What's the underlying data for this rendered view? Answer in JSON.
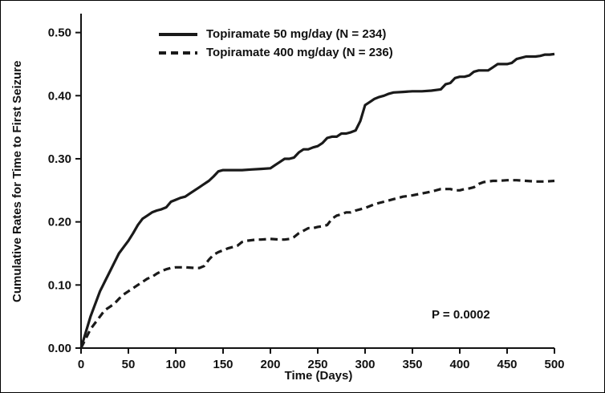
{
  "figure": {
    "p_value": "P = 0.0002"
  },
  "chart_data": {
    "type": "line",
    "title": "",
    "xlabel": "Time (Days)",
    "ylabel": "Cumulative Rates for Time to First Seizure",
    "xlim": [
      0,
      500
    ],
    "ylim": [
      0,
      0.53
    ],
    "grid": false,
    "legend_position": "top-inside",
    "axis_color": "#111111",
    "xticks": [
      0,
      50,
      100,
      150,
      200,
      250,
      300,
      350,
      400,
      450,
      500
    ],
    "xticklabels": [
      "0",
      "50",
      "100",
      "150",
      "200",
      "250",
      "300",
      "350",
      "400",
      "450",
      "500"
    ],
    "yticks": [
      0.0,
      0.1,
      0.2,
      0.3,
      0.4,
      0.5
    ],
    "yticklabels": [
      "0.00",
      "0.10",
      "0.20",
      "0.30",
      "0.40",
      "0.50"
    ],
    "annotation": {
      "text": "P = 0.0002"
    },
    "series": [
      {
        "name": "Topiramate 50 mg/day (N = 234)",
        "style": "solid",
        "color": "#1a1a1a",
        "points": [
          [
            0,
            0.0
          ],
          [
            5,
            0.025
          ],
          [
            10,
            0.05
          ],
          [
            15,
            0.07
          ],
          [
            20,
            0.09
          ],
          [
            25,
            0.105
          ],
          [
            30,
            0.12
          ],
          [
            35,
            0.135
          ],
          [
            40,
            0.15
          ],
          [
            45,
            0.16
          ],
          [
            50,
            0.17
          ],
          [
            55,
            0.182
          ],
          [
            60,
            0.195
          ],
          [
            65,
            0.205
          ],
          [
            70,
            0.21
          ],
          [
            75,
            0.215
          ],
          [
            80,
            0.218
          ],
          [
            85,
            0.22
          ],
          [
            90,
            0.223
          ],
          [
            95,
            0.232
          ],
          [
            100,
            0.235
          ],
          [
            105,
            0.238
          ],
          [
            110,
            0.24
          ],
          [
            115,
            0.245
          ],
          [
            120,
            0.25
          ],
          [
            125,
            0.255
          ],
          [
            130,
            0.26
          ],
          [
            135,
            0.265
          ],
          [
            140,
            0.272
          ],
          [
            145,
            0.28
          ],
          [
            150,
            0.282
          ],
          [
            160,
            0.282
          ],
          [
            170,
            0.282
          ],
          [
            180,
            0.283
          ],
          [
            190,
            0.284
          ],
          [
            200,
            0.285
          ],
          [
            205,
            0.29
          ],
          [
            210,
            0.295
          ],
          [
            215,
            0.3
          ],
          [
            220,
            0.3
          ],
          [
            225,
            0.302
          ],
          [
            230,
            0.31
          ],
          [
            235,
            0.315
          ],
          [
            240,
            0.315
          ],
          [
            245,
            0.318
          ],
          [
            250,
            0.32
          ],
          [
            255,
            0.325
          ],
          [
            260,
            0.333
          ],
          [
            265,
            0.335
          ],
          [
            270,
            0.335
          ],
          [
            275,
            0.34
          ],
          [
            280,
            0.34
          ],
          [
            285,
            0.342
          ],
          [
            290,
            0.345
          ],
          [
            295,
            0.36
          ],
          [
            300,
            0.385
          ],
          [
            305,
            0.39
          ],
          [
            310,
            0.395
          ],
          [
            315,
            0.398
          ],
          [
            320,
            0.4
          ],
          [
            325,
            0.403
          ],
          [
            330,
            0.405
          ],
          [
            340,
            0.406
          ],
          [
            350,
            0.407
          ],
          [
            360,
            0.407
          ],
          [
            370,
            0.408
          ],
          [
            380,
            0.41
          ],
          [
            385,
            0.418
          ],
          [
            390,
            0.42
          ],
          [
            395,
            0.428
          ],
          [
            400,
            0.43
          ],
          [
            405,
            0.43
          ],
          [
            410,
            0.432
          ],
          [
            415,
            0.438
          ],
          [
            420,
            0.44
          ],
          [
            425,
            0.44
          ],
          [
            430,
            0.44
          ],
          [
            435,
            0.445
          ],
          [
            440,
            0.45
          ],
          [
            445,
            0.45
          ],
          [
            450,
            0.45
          ],
          [
            455,
            0.452
          ],
          [
            460,
            0.458
          ],
          [
            465,
            0.46
          ],
          [
            470,
            0.462
          ],
          [
            475,
            0.462
          ],
          [
            480,
            0.462
          ],
          [
            485,
            0.463
          ],
          [
            490,
            0.465
          ],
          [
            495,
            0.465
          ],
          [
            500,
            0.466
          ]
        ]
      },
      {
        "name": "Topiramate 400 mg/day (N = 236)",
        "style": "dashed",
        "color": "#1a1a1a",
        "points": [
          [
            0,
            0.0
          ],
          [
            5,
            0.015
          ],
          [
            10,
            0.03
          ],
          [
            15,
            0.04
          ],
          [
            20,
            0.05
          ],
          [
            25,
            0.06
          ],
          [
            30,
            0.065
          ],
          [
            35,
            0.07
          ],
          [
            40,
            0.078
          ],
          [
            45,
            0.085
          ],
          [
            50,
            0.09
          ],
          [
            55,
            0.095
          ],
          [
            60,
            0.1
          ],
          [
            65,
            0.105
          ],
          [
            70,
            0.11
          ],
          [
            75,
            0.113
          ],
          [
            80,
            0.118
          ],
          [
            85,
            0.122
          ],
          [
            90,
            0.125
          ],
          [
            95,
            0.127
          ],
          [
            100,
            0.128
          ],
          [
            110,
            0.128
          ],
          [
            120,
            0.127
          ],
          [
            125,
            0.127
          ],
          [
            130,
            0.13
          ],
          [
            135,
            0.14
          ],
          [
            140,
            0.148
          ],
          [
            145,
            0.152
          ],
          [
            150,
            0.155
          ],
          [
            155,
            0.158
          ],
          [
            160,
            0.16
          ],
          [
            165,
            0.162
          ],
          [
            170,
            0.168
          ],
          [
            175,
            0.17
          ],
          [
            180,
            0.171
          ],
          [
            185,
            0.172
          ],
          [
            190,
            0.172
          ],
          [
            200,
            0.173
          ],
          [
            210,
            0.172
          ],
          [
            215,
            0.172
          ],
          [
            220,
            0.173
          ],
          [
            225,
            0.176
          ],
          [
            230,
            0.182
          ],
          [
            235,
            0.186
          ],
          [
            240,
            0.19
          ],
          [
            245,
            0.19
          ],
          [
            250,
            0.192
          ],
          [
            255,
            0.193
          ],
          [
            260,
            0.195
          ],
          [
            265,
            0.205
          ],
          [
            270,
            0.21
          ],
          [
            275,
            0.212
          ],
          [
            280,
            0.215
          ],
          [
            285,
            0.215
          ],
          [
            290,
            0.218
          ],
          [
            295,
            0.22
          ],
          [
            300,
            0.222
          ],
          [
            305,
            0.225
          ],
          [
            310,
            0.228
          ],
          [
            315,
            0.23
          ],
          [
            320,
            0.232
          ],
          [
            325,
            0.234
          ],
          [
            330,
            0.236
          ],
          [
            340,
            0.24
          ],
          [
            350,
            0.242
          ],
          [
            360,
            0.245
          ],
          [
            370,
            0.248
          ],
          [
            375,
            0.25
          ],
          [
            380,
            0.252
          ],
          [
            385,
            0.252
          ],
          [
            390,
            0.252
          ],
          [
            395,
            0.25
          ],
          [
            400,
            0.25
          ],
          [
            405,
            0.252
          ],
          [
            410,
            0.253
          ],
          [
            415,
            0.255
          ],
          [
            420,
            0.26
          ],
          [
            425,
            0.263
          ],
          [
            430,
            0.264
          ],
          [
            435,
            0.265
          ],
          [
            440,
            0.265
          ],
          [
            450,
            0.266
          ],
          [
            460,
            0.266
          ],
          [
            470,
            0.265
          ],
          [
            480,
            0.264
          ],
          [
            490,
            0.264
          ],
          [
            500,
            0.265
          ]
        ]
      }
    ]
  }
}
